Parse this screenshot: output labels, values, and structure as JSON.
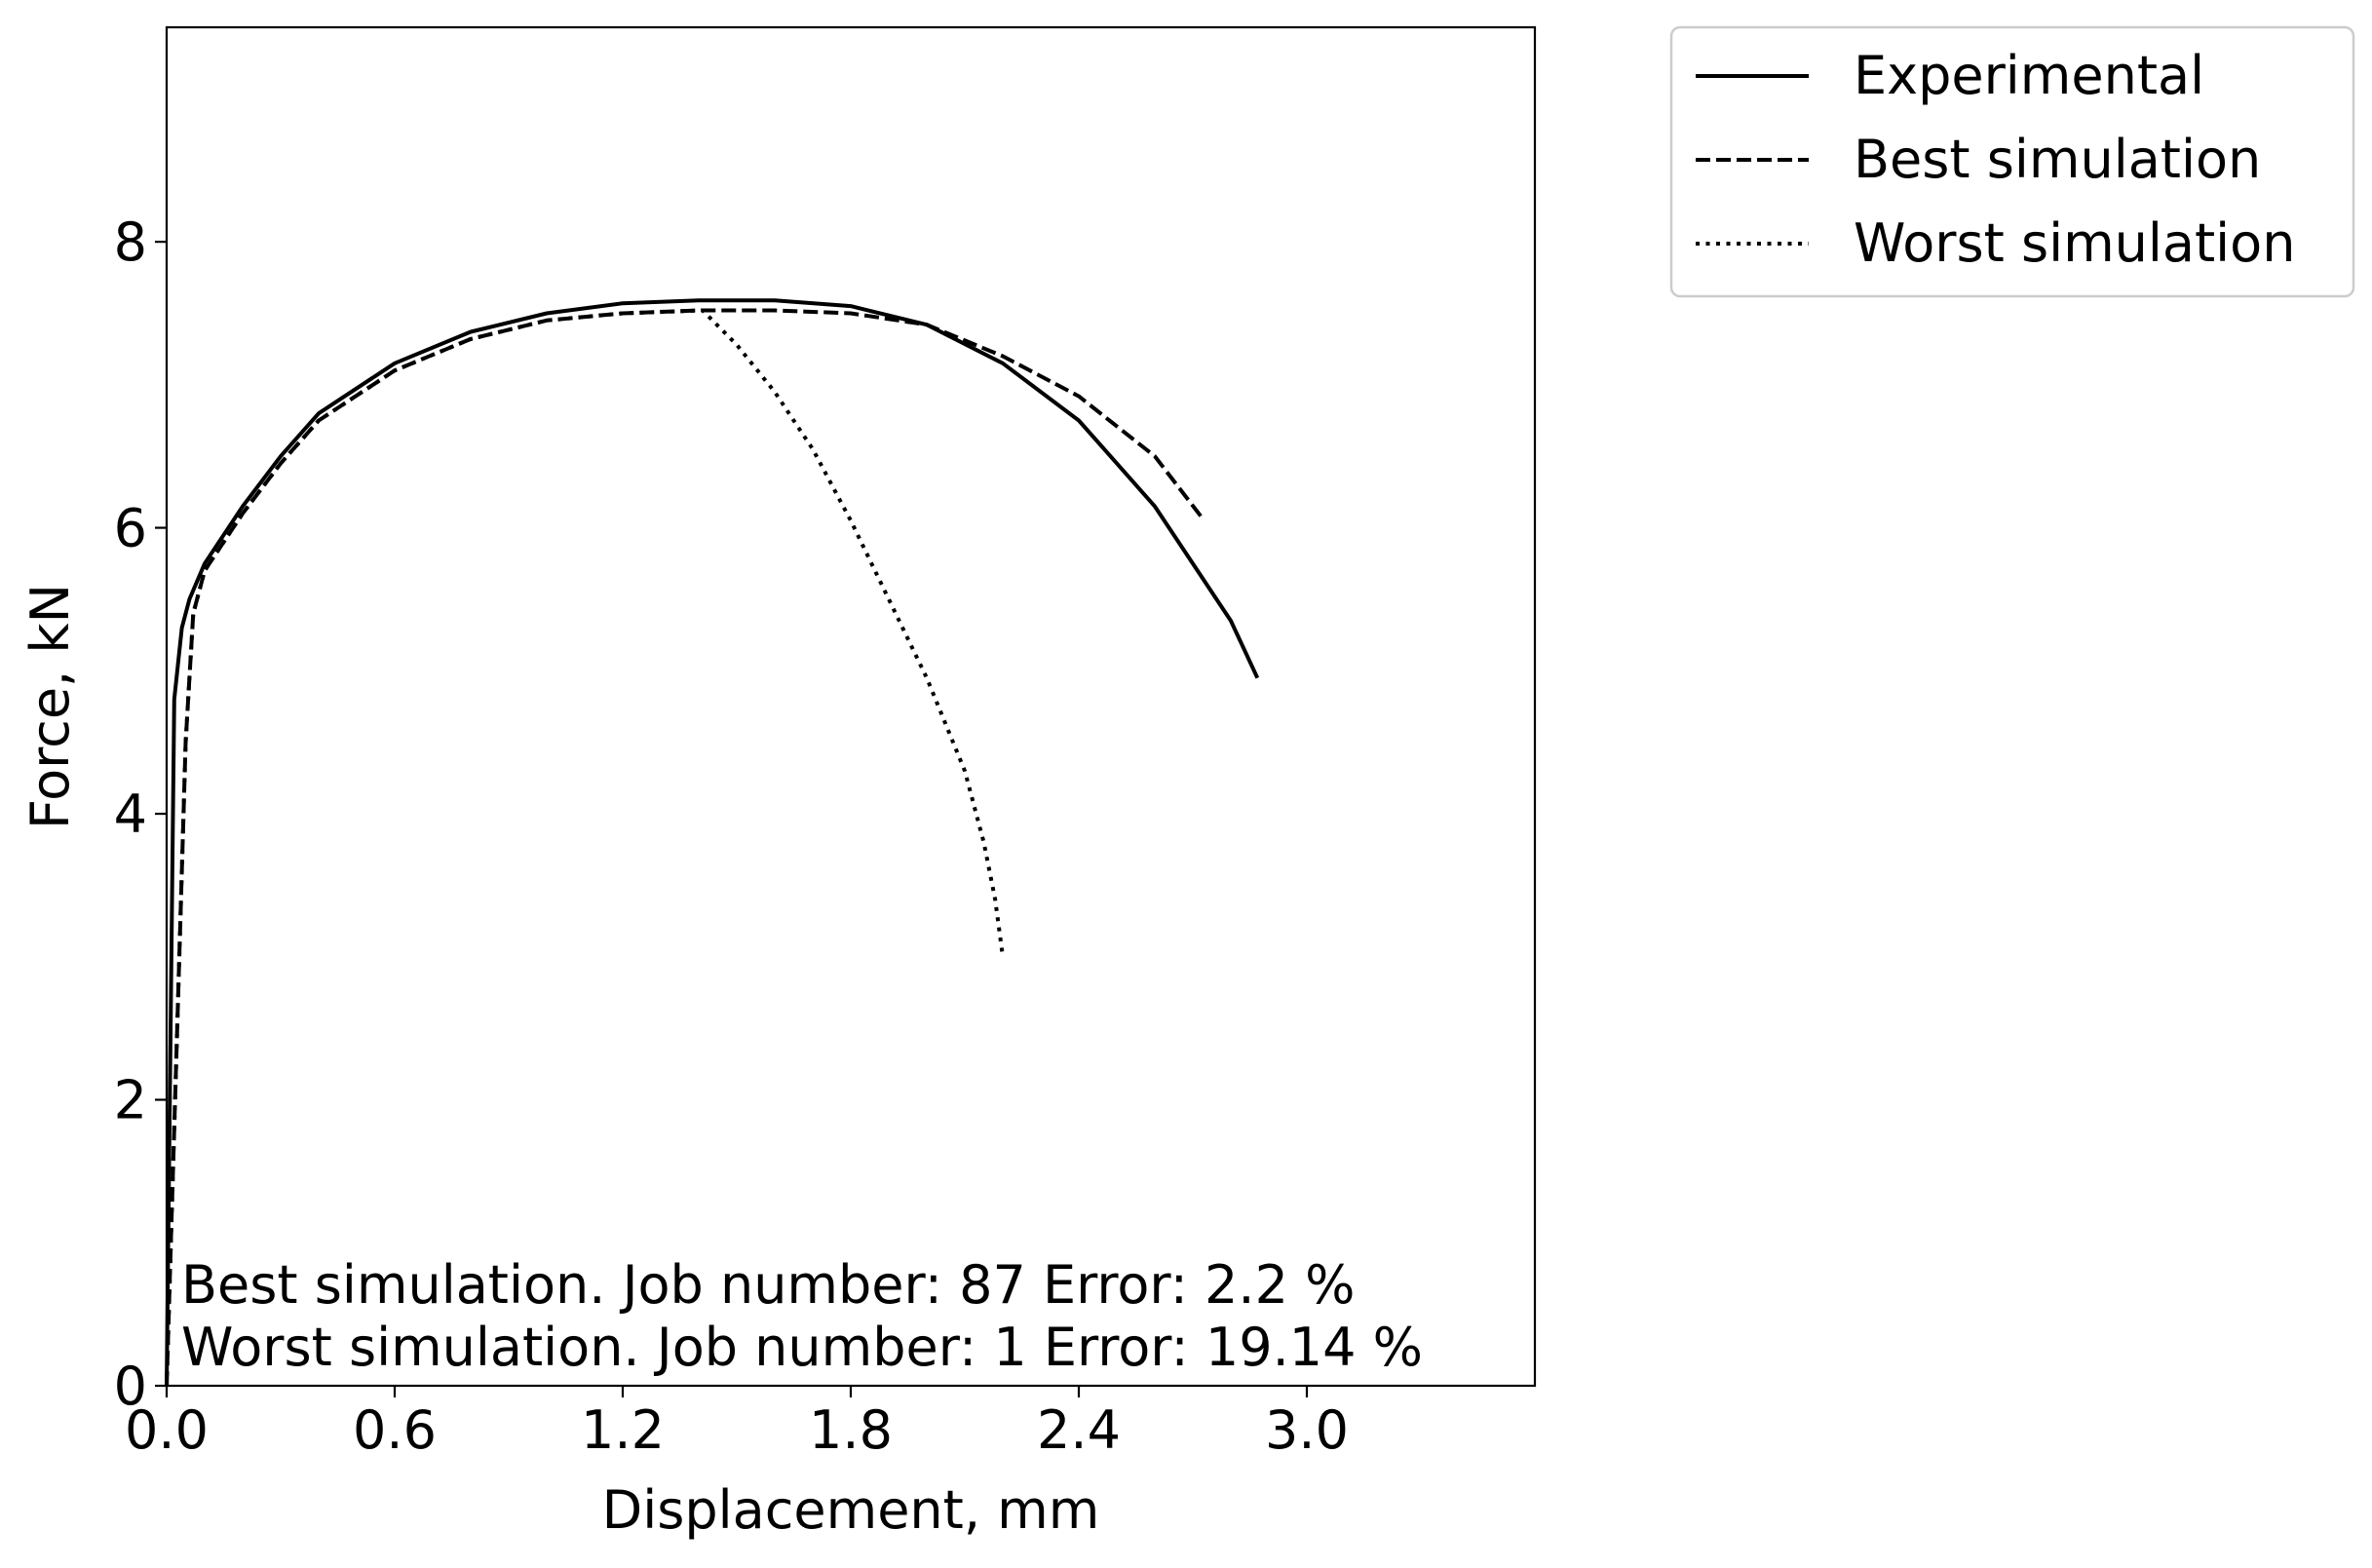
{
  "chart_data": {
    "type": "line",
    "title": "",
    "xlabel": "Displacement, mm",
    "ylabel": "Force, kN",
    "xlim": [
      0.0,
      3.6
    ],
    "ylim": [
      0.0,
      9.5
    ],
    "xticks": [
      0.0,
      0.6,
      1.2,
      1.8,
      2.4,
      3.0
    ],
    "xtick_labels": [
      "0.0",
      "0.6",
      "1.2",
      "1.8",
      "2.4",
      "3.0"
    ],
    "yticks": [
      0,
      2,
      4,
      6,
      8
    ],
    "ytick_labels": [
      "0",
      "2",
      "4",
      "6",
      "8"
    ],
    "grid": false,
    "legend_position": "outside top-right",
    "series": [
      {
        "name": "Experimental",
        "style": "solid",
        "color": "#000000",
        "x": [
          0.0,
          0.02,
          0.04,
          0.06,
          0.1,
          0.2,
          0.3,
          0.4,
          0.6,
          0.8,
          1.0,
          1.2,
          1.4,
          1.6,
          1.8,
          2.0,
          2.2,
          2.4,
          2.6,
          2.8,
          2.87
        ],
        "y": [
          0.0,
          4.8,
          5.3,
          5.5,
          5.75,
          6.15,
          6.5,
          6.8,
          7.15,
          7.37,
          7.5,
          7.57,
          7.59,
          7.59,
          7.55,
          7.42,
          7.15,
          6.75,
          6.15,
          5.35,
          4.95
        ]
      },
      {
        "name": "Best simulation",
        "style": "dashed",
        "color": "#000000",
        "x": [
          0.0,
          0.05,
          0.07,
          0.1,
          0.2,
          0.3,
          0.4,
          0.6,
          0.8,
          1.0,
          1.2,
          1.4,
          1.6,
          1.8,
          2.0,
          2.2,
          2.4,
          2.6,
          2.73
        ],
        "y": [
          0.0,
          4.5,
          5.4,
          5.7,
          6.1,
          6.45,
          6.75,
          7.1,
          7.32,
          7.45,
          7.5,
          7.52,
          7.52,
          7.5,
          7.42,
          7.2,
          6.92,
          6.5,
          6.05
        ]
      },
      {
        "name": "Worst simulation",
        "style": "dotted",
        "color": "#000000",
        "x": [
          0.0,
          0.05,
          0.07,
          0.1,
          0.2,
          0.3,
          0.4,
          0.6,
          0.8,
          1.0,
          1.2,
          1.41,
          1.5,
          1.6,
          1.7,
          1.8,
          1.9,
          2.0,
          2.1,
          2.15,
          2.18,
          2.2
        ],
        "y": [
          0.0,
          4.5,
          5.4,
          5.7,
          6.1,
          6.45,
          6.75,
          7.1,
          7.32,
          7.45,
          7.5,
          7.52,
          7.28,
          6.95,
          6.55,
          6.05,
          5.5,
          4.95,
          4.3,
          3.8,
          3.4,
          3.0
        ]
      }
    ],
    "annotations": [
      "Best simulation. Job number: 87 Error: 2.2 %",
      "Worst simulation. Job number: 1 Error: 19.14 %"
    ]
  }
}
